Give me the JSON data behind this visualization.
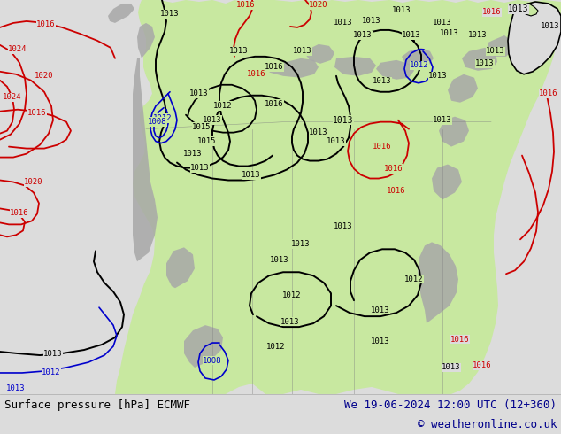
{
  "title_left": "Surface pressure [hPa] ECMWF",
  "title_right": "We 19-06-2024 12:00 UTC (12+360)",
  "copyright": "© weatheronline.co.uk",
  "ocean_color": "#dcdcdc",
  "land_color": "#c8e8a0",
  "mountain_color": "#a8a8a8",
  "border_color": "#404040",
  "black_line": "#000000",
  "red_line": "#cc0000",
  "blue_line": "#0000cc",
  "footer_bg": "#ffffff",
  "footer_right_color": "#00008b",
  "footer_left_color": "#000000",
  "figsize": [
    6.34,
    4.9
  ],
  "dpi": 100
}
